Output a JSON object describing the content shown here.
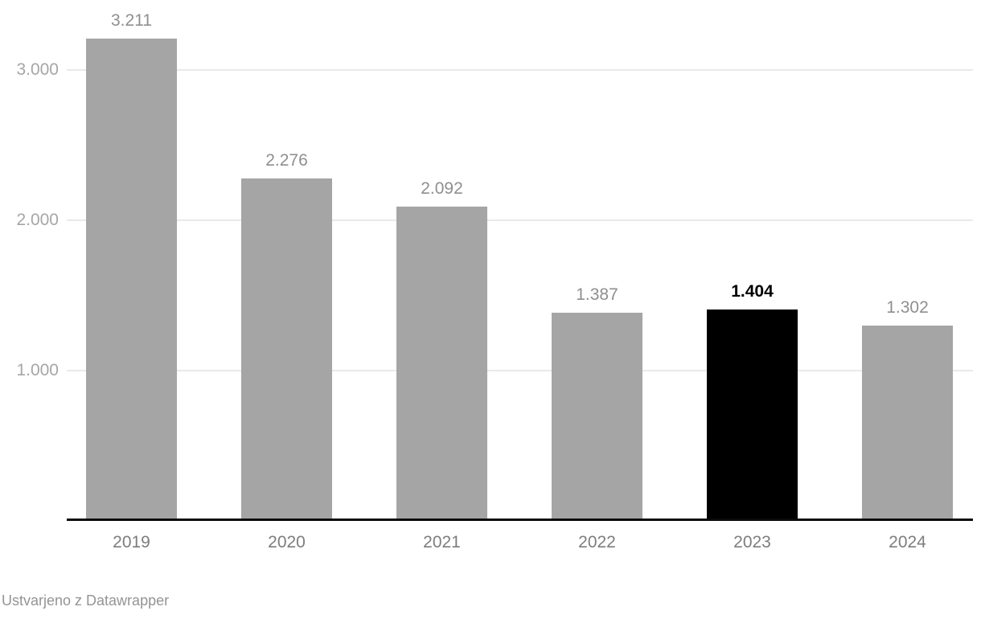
{
  "chart_data": {
    "type": "bar",
    "categories": [
      "2019",
      "2020",
      "2021",
      "2022",
      "2023",
      "2024"
    ],
    "values": [
      3211,
      2276,
      2092,
      1387,
      1404,
      1302
    ],
    "value_labels": [
      "3.211",
      "2.276",
      "2.092",
      "1.387",
      "1.404",
      "1.302"
    ],
    "highlighted_category": "2023",
    "title": "",
    "xlabel": "",
    "ylabel": "",
    "ylim": [
      0,
      3465
    ],
    "grid": true,
    "legend": "none",
    "y_ticks": [
      {
        "value": 1000,
        "label": "1.000"
      },
      {
        "value": 2000,
        "label": "2.000"
      },
      {
        "value": 3000,
        "label": "3.000"
      }
    ]
  },
  "colors": {
    "bar_default": "#a5a5a5",
    "bar_highlight": "#000000",
    "value_label": "#8f8f8f",
    "value_label_highlight": "#000000",
    "y_tick_label": "#a6a6a6",
    "x_tick_label": "#7d7d7d",
    "gridline": "#e9e9e9",
    "axis_line": "#0b0b0b",
    "footer_text": "#949494"
  },
  "footer": {
    "attribution": "Ustvarjeno z Datawrapper"
  }
}
